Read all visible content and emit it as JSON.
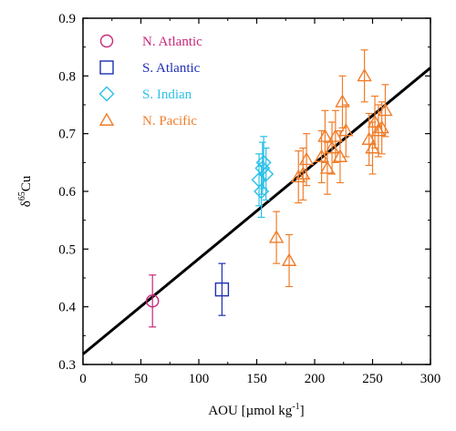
{
  "chart_data": {
    "type": "scatter",
    "xlabel_main": "AOU [µmol kg",
    "xlabel_sup": "-1",
    "xlabel_end": "]",
    "ylabel_prefix": "δ",
    "ylabel_sup": "65",
    "ylabel_main": "Cu",
    "xlim": [
      0,
      300
    ],
    "ylim": [
      0.3,
      0.9
    ],
    "xticks": [
      0,
      50,
      100,
      150,
      200,
      250,
      300
    ],
    "yticks": [
      0.3,
      0.4,
      0.5,
      0.6,
      0.7,
      0.8,
      0.9
    ],
    "xtick_labels": [
      "0",
      "50",
      "100",
      "150",
      "200",
      "250",
      "300"
    ],
    "ytick_labels": [
      "0.3",
      "0.4",
      "0.5",
      "0.6",
      "0.7",
      "0.8",
      "0.9"
    ],
    "grid": false,
    "legend_position": "top-left",
    "fit_line": {
      "x": [
        0,
        300
      ],
      "y": [
        0.318,
        0.814
      ],
      "color": "#000000"
    },
    "series": [
      {
        "name": "N. Atlantic",
        "marker": "circle",
        "color": "#c8287a",
        "points": [
          {
            "x": 60,
            "y": 0.41,
            "err": 0.045
          }
        ]
      },
      {
        "name": "S. Atlantic",
        "marker": "square",
        "color": "#1f2fb5",
        "points": [
          {
            "x": 120,
            "y": 0.43,
            "err": 0.045
          }
        ]
      },
      {
        "name": "S. Indian",
        "marker": "diamond",
        "color": "#2cc0e8",
        "points": [
          {
            "x": 152,
            "y": 0.62,
            "err": 0.045
          },
          {
            "x": 154,
            "y": 0.6,
            "err": 0.045
          },
          {
            "x": 155,
            "y": 0.64,
            "err": 0.045
          },
          {
            "x": 156,
            "y": 0.65,
            "err": 0.045
          },
          {
            "x": 158,
            "y": 0.63,
            "err": 0.045
          }
        ]
      },
      {
        "name": "N. Pacific",
        "marker": "triangle",
        "color": "#f07d2a",
        "points": [
          {
            "x": 167,
            "y": 0.52,
            "err": 0.045
          },
          {
            "x": 178,
            "y": 0.48,
            "err": 0.045
          },
          {
            "x": 186,
            "y": 0.625,
            "err": 0.045
          },
          {
            "x": 190,
            "y": 0.63,
            "err": 0.045
          },
          {
            "x": 193,
            "y": 0.655,
            "err": 0.045
          },
          {
            "x": 206,
            "y": 0.66,
            "err": 0.045
          },
          {
            "x": 209,
            "y": 0.695,
            "err": 0.045
          },
          {
            "x": 211,
            "y": 0.64,
            "err": 0.045
          },
          {
            "x": 215,
            "y": 0.675,
            "err": 0.045
          },
          {
            "x": 218,
            "y": 0.695,
            "err": 0.045
          },
          {
            "x": 222,
            "y": 0.66,
            "err": 0.045
          },
          {
            "x": 224,
            "y": 0.755,
            "err": 0.045
          },
          {
            "x": 227,
            "y": 0.705,
            "err": 0.045
          },
          {
            "x": 243,
            "y": 0.8,
            "err": 0.045
          },
          {
            "x": 247,
            "y": 0.69,
            "err": 0.045
          },
          {
            "x": 250,
            "y": 0.675,
            "err": 0.045
          },
          {
            "x": 252,
            "y": 0.72,
            "err": 0.045
          },
          {
            "x": 255,
            "y": 0.705,
            "err": 0.045
          },
          {
            "x": 258,
            "y": 0.71,
            "err": 0.045
          },
          {
            "x": 261,
            "y": 0.74,
            "err": 0.045
          }
        ]
      }
    ]
  }
}
